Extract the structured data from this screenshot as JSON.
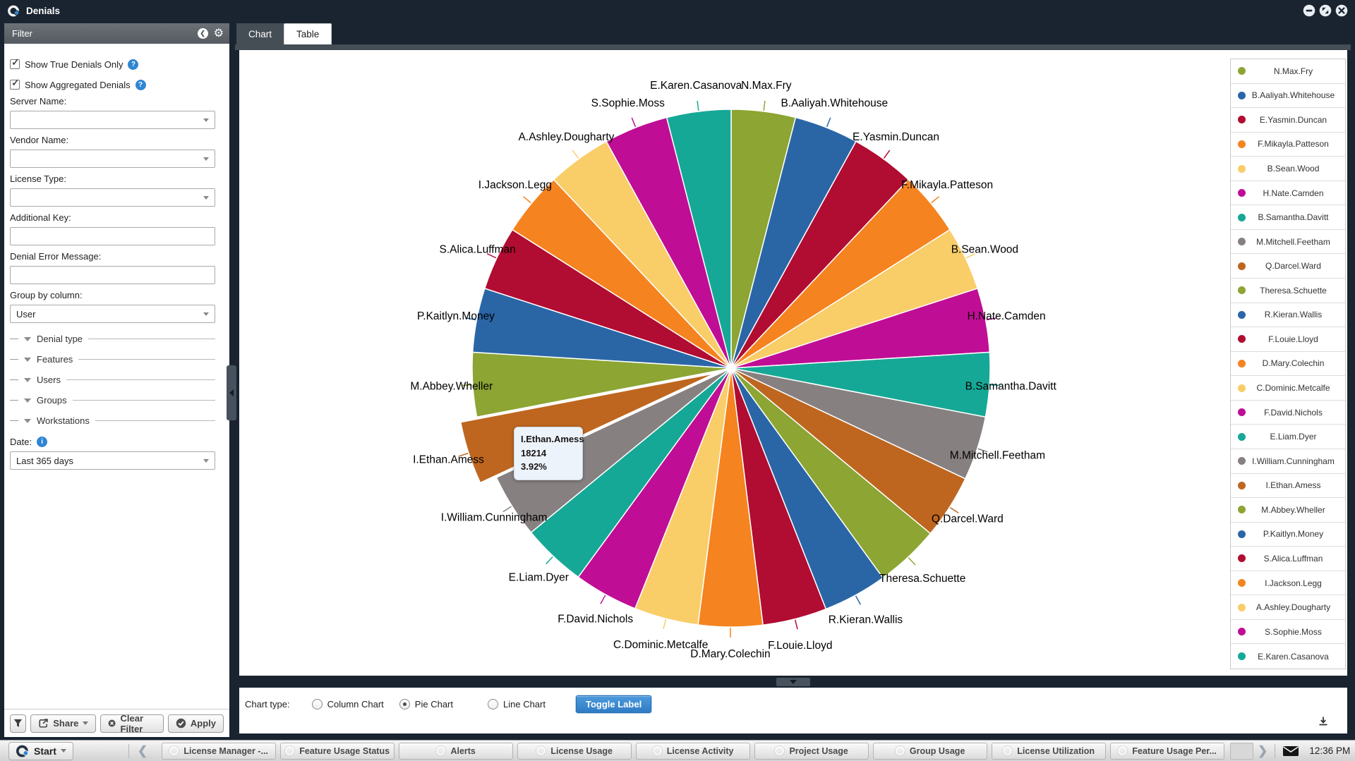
{
  "titlebar": {
    "title": "Denials"
  },
  "filter": {
    "title": "Filter",
    "checkboxes": [
      {
        "label": "Show True Denials Only",
        "checked": true
      },
      {
        "label": "Show Aggregated Denials",
        "checked": true
      }
    ],
    "server_name": {
      "label": "Server Name:",
      "value": ""
    },
    "vendor_name": {
      "label": "Vendor Name:",
      "value": ""
    },
    "license_type": {
      "label": "License Type:",
      "value": ""
    },
    "additional_key": {
      "label": "Additional Key:",
      "value": ""
    },
    "denial_error_message": {
      "label": "Denial Error Message:",
      "value": ""
    },
    "group_by": {
      "label": "Group by column:",
      "value": "User"
    },
    "tree_sections": [
      "Denial type",
      "Features",
      "Users",
      "Groups",
      "Workstations"
    ],
    "date": {
      "label": "Date:",
      "value": "Last 365 days"
    },
    "share_button": "Share",
    "clear_button": "Clear Filter",
    "apply_button": "Apply"
  },
  "tabs": {
    "chart": "Chart",
    "table": "Table"
  },
  "chart_data": {
    "type": "pie",
    "title": "",
    "legend_position": "right",
    "start_angle_deg": 0,
    "direction": "clockwise",
    "selected_slice": {
      "name": "I.Ethan.Amess",
      "value": 18214,
      "percent": "3.92%",
      "exploded": true
    },
    "slices": [
      {
        "name": "N.Max.Fry",
        "value": 18600,
        "color": "#8CA533"
      },
      {
        "name": "B.Aaliyah.Whitehouse",
        "value": 18600,
        "color": "#2A66A6"
      },
      {
        "name": "E.Yasmin.Duncan",
        "value": 18600,
        "color": "#B10C31"
      },
      {
        "name": "F.Mikayla.Patteson",
        "value": 18600,
        "color": "#F5831F"
      },
      {
        "name": "B.Sean.Wood",
        "value": 18600,
        "color": "#F9CD68"
      },
      {
        "name": "H.Nate.Camden",
        "value": 18600,
        "color": "#C00D95"
      },
      {
        "name": "B.Samantha.Davitt",
        "value": 18600,
        "color": "#16A896"
      },
      {
        "name": "M.Mitchell.Feetham",
        "value": 18600,
        "color": "#878081"
      },
      {
        "name": "Q.Darcel.Ward",
        "value": 18600,
        "color": "#BE661F"
      },
      {
        "name": "Theresa.Schuette",
        "value": 18600,
        "color": "#8CA533"
      },
      {
        "name": "R.Kieran.Wallis",
        "value": 18600,
        "color": "#2A66A6"
      },
      {
        "name": "F.Louie.Lloyd",
        "value": 18600,
        "color": "#B10C31"
      },
      {
        "name": "D.Mary.Colechin",
        "value": 18600,
        "color": "#F5831F"
      },
      {
        "name": "C.Dominic.Metcalfe",
        "value": 18600,
        "color": "#F9CD68"
      },
      {
        "name": "F.David.Nichols",
        "value": 18600,
        "color": "#C00D95"
      },
      {
        "name": "E.Liam.Dyer",
        "value": 18600,
        "color": "#16A896"
      },
      {
        "name": "I.William.Cunningham",
        "value": 18600,
        "color": "#878081"
      },
      {
        "name": "I.Ethan.Amess",
        "value": 18214,
        "color": "#BE661F"
      },
      {
        "name": "M.Abbey.Wheller",
        "value": 18600,
        "color": "#8CA533"
      },
      {
        "name": "P.Kaitlyn.Money",
        "value": 18600,
        "color": "#2A66A6"
      },
      {
        "name": "S.Alica.Luffman",
        "value": 18600,
        "color": "#B10C31"
      },
      {
        "name": "I.Jackson.Legg",
        "value": 18600,
        "color": "#F5831F"
      },
      {
        "name": "A.Ashley.Dougharty",
        "value": 18600,
        "color": "#F9CD68"
      },
      {
        "name": "S.Sophie.Moss",
        "value": 18600,
        "color": "#C00D95"
      },
      {
        "name": "E.Karen.Casanova",
        "value": 18600,
        "color": "#16A896"
      }
    ]
  },
  "tooltip": {
    "title": "I.Ethan.Amess",
    "value": "18214",
    "percent": "3.92%"
  },
  "controls": {
    "label": "Chart type:",
    "options": [
      {
        "label": "Column Chart",
        "selected": false
      },
      {
        "label": "Pie Chart",
        "selected": true
      },
      {
        "label": "Line Chart",
        "selected": false
      }
    ],
    "toggle_button": "Toggle Label"
  },
  "taskbar": {
    "start_label": "Start",
    "app_buttons": [
      "License Manager -...",
      "Feature Usage Status",
      "Alerts",
      "License Usage",
      "License Activity",
      "Project Usage",
      "Group Usage",
      "License Utilization",
      "Feature Usage Per..."
    ],
    "clock": "12:36 PM"
  },
  "icons": {
    "gear": "⚙",
    "chevron_left": "❮",
    "chevron_right": "❯",
    "back": "❮"
  }
}
